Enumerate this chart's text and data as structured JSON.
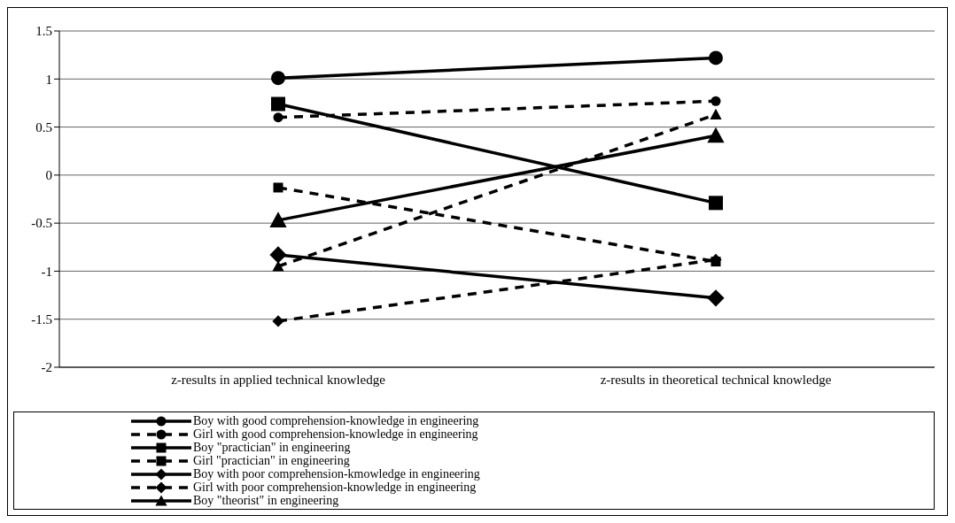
{
  "chart_data": {
    "type": "line",
    "categories": [
      "z-results in applied technical knowledge",
      "z-results in theoretical technical knowledge"
    ],
    "ylim": [
      -2,
      1.5
    ],
    "yticks": [
      -2,
      -1.5,
      -1,
      -0.5,
      0,
      0.5,
      1,
      1.5
    ],
    "grid": "y",
    "legend": "bottom",
    "series": [
      {
        "name": "Boy with good comprehension-knowledge in engineering",
        "color": "#000000",
        "marker": "circle",
        "line_style": "solid",
        "values": [
          1.01,
          1.22
        ]
      },
      {
        "name": "Girl with good comprehension-knowledge in engineering",
        "color": "#000000",
        "marker": "circle",
        "line_style": "dashed",
        "values": [
          0.6,
          0.77
        ]
      },
      {
        "name": "Boy \"practician\" in engineering",
        "color": "#000000",
        "marker": "square",
        "line_style": "solid",
        "values": [
          0.74,
          -0.29
        ]
      },
      {
        "name": "Girl \"practician\" in engineering",
        "color": "#000000",
        "marker": "square",
        "line_style": "dashed",
        "values": [
          -0.13,
          -0.9
        ]
      },
      {
        "name": "Boy with poor comprehension-kmowledge in engineering",
        "color": "#000000",
        "marker": "diamond",
        "line_style": "solid",
        "values": [
          -0.83,
          -1.28
        ]
      },
      {
        "name": "Girl with poor comprehension-knowledge in engineering",
        "color": "#000000",
        "marker": "diamond",
        "line_style": "dashed",
        "values": [
          -1.52,
          -0.88
        ]
      },
      {
        "name": "Boy \"theorist\" in engineering",
        "color": "#000000",
        "marker": "triangle",
        "line_style": "solid",
        "values": [
          -0.47,
          0.41
        ]
      },
      {
        "color": "#000000",
        "marker": "triangle",
        "line_style": "dashed",
        "values": [
          -0.95,
          0.63
        ]
      }
    ]
  }
}
